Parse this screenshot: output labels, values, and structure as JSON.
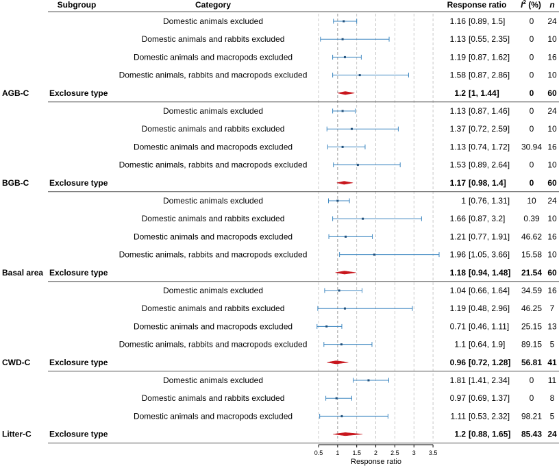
{
  "chart_data": {
    "type": "forest",
    "headers": {
      "subgroup": "Subgroup",
      "category": "Category",
      "response_ratio": "Response ratio",
      "i2_prefix": "I",
      "i2_sup": "2",
      "i2_suffix": " (%)",
      "n": "n"
    },
    "xlabel": "Response ratio",
    "xticks": [
      "0.5",
      "1",
      "1.5",
      "2",
      "2.5",
      "3",
      "3.5"
    ],
    "xlim": [
      0.5,
      3.7
    ],
    "reference_line": 1,
    "accent_colors": {
      "ci_line": "#3b86c0",
      "summary": "#c8161d",
      "grid": "#bbbbbb",
      "divider": "#555555"
    },
    "groups": [
      {
        "subgroup": "AGB-C",
        "rows": [
          {
            "category": "Domestic animals excluded",
            "est": 1.16,
            "lo": 0.89,
            "hi": 1.5,
            "rr_text": "1.16",
            "ci_text": "[0.89, 1.5]",
            "i2": "0",
            "n": "24"
          },
          {
            "category": "Domestic animals and rabbits excluded",
            "est": 1.13,
            "lo": 0.55,
            "hi": 2.35,
            "rr_text": "1.13",
            "ci_text": "[0.55, 2.35]",
            "i2": "0",
            "n": "10"
          },
          {
            "category": "Domestic animals and macropods excluded",
            "est": 1.19,
            "lo": 0.87,
            "hi": 1.62,
            "rr_text": "1.19",
            "ci_text": "[0.87, 1.62]",
            "i2": "0",
            "n": "16"
          },
          {
            "category": "Domestic animals, rabbits and macropods excluded",
            "est": 1.58,
            "lo": 0.87,
            "hi": 2.86,
            "rr_text": "1.58",
            "ci_text": "[0.87, 2.86]",
            "i2": "0",
            "n": "10"
          }
        ],
        "summary": {
          "label": "Exclosure type",
          "est": 1.2,
          "lo": 1,
          "hi": 1.44,
          "rr_text": "1.2",
          "ci_text": "[1, 1.44]",
          "i2": "0",
          "n": "60"
        }
      },
      {
        "subgroup": "BGB-C",
        "rows": [
          {
            "category": "Domestic animals excluded",
            "est": 1.13,
            "lo": 0.87,
            "hi": 1.46,
            "rr_text": "1.13",
            "ci_text": "[0.87, 1.46]",
            "i2": "0",
            "n": "24"
          },
          {
            "category": "Domestic animals and rabbits excluded",
            "est": 1.37,
            "lo": 0.72,
            "hi": 2.59,
            "rr_text": "1.37",
            "ci_text": "[0.72, 2.59]",
            "i2": "0",
            "n": "10"
          },
          {
            "category": "Domestic animals and macropods excluded",
            "est": 1.13,
            "lo": 0.74,
            "hi": 1.72,
            "rr_text": "1.13",
            "ci_text": "[0.74, 1.72]",
            "i2": "30.94",
            "n": "16"
          },
          {
            "category": "Domestic animals, rabbits and macropods excluded",
            "est": 1.53,
            "lo": 0.89,
            "hi": 2.64,
            "rr_text": "1.53",
            "ci_text": "[0.89, 2.64]",
            "i2": "0",
            "n": "10"
          }
        ],
        "summary": {
          "label": "Exclosure type",
          "est": 1.17,
          "lo": 0.98,
          "hi": 1.4,
          "rr_text": "1.17",
          "ci_text": "[0.98, 1.4]",
          "i2": "0",
          "n": "60"
        }
      },
      {
        "subgroup": "Basal area",
        "rows": [
          {
            "category": "Domestic animals excluded",
            "est": 1,
            "lo": 0.76,
            "hi": 1.31,
            "rr_text": "1",
            "ci_text": "[0.76, 1.31]",
            "i2": "10",
            "n": "24"
          },
          {
            "category": "Domestic animals and rabbits excluded",
            "est": 1.66,
            "lo": 0.87,
            "hi": 3.2,
            "rr_text": "1.66",
            "ci_text": "[0.87, 3.2]",
            "i2": "0.39",
            "n": "10"
          },
          {
            "category": "Domestic animals and macropods excluded",
            "est": 1.21,
            "lo": 0.77,
            "hi": 1.91,
            "rr_text": "1.21",
            "ci_text": "[0.77, 1.91]",
            "i2": "46.62",
            "n": "16"
          },
          {
            "category": "Domestic animals, rabbits and macropods excluded",
            "est": 1.96,
            "lo": 1.05,
            "hi": 3.66,
            "rr_text": "1.96",
            "ci_text": "[1.05, 3.66]",
            "i2": "15.58",
            "n": "10"
          }
        ],
        "summary": {
          "label": "Exclosure type",
          "est": 1.18,
          "lo": 0.94,
          "hi": 1.48,
          "rr_text": "1.18",
          "ci_text": "[0.94, 1.48]",
          "i2": "21.54",
          "n": "60"
        }
      },
      {
        "subgroup": "CWD-C",
        "rows": [
          {
            "category": "Domestic animals excluded",
            "est": 1.04,
            "lo": 0.66,
            "hi": 1.64,
            "rr_text": "1.04",
            "ci_text": "[0.66, 1.64]",
            "i2": "34.59",
            "n": "16"
          },
          {
            "category": "Domestic animals and rabbits excluded",
            "est": 1.19,
            "lo": 0.48,
            "hi": 2.96,
            "rr_text": "1.19",
            "ci_text": "[0.48, 2.96]",
            "i2": "46.25",
            "n": "7"
          },
          {
            "category": "Domestic animals and macropods excluded",
            "est": 0.71,
            "lo": 0.46,
            "hi": 1.11,
            "rr_text": "0.71",
            "ci_text": "[0.46, 1.11]",
            "i2": "25.15",
            "n": "13"
          },
          {
            "category": "Domestic animals, rabbits and macropods excluded",
            "est": 1.1,
            "lo": 0.64,
            "hi": 1.9,
            "rr_text": "1.1",
            "ci_text": "[0.64, 1.9]",
            "i2": "89.15",
            "n": "5"
          }
        ],
        "summary": {
          "label": "Exclosure type",
          "est": 0.96,
          "lo": 0.72,
          "hi": 1.28,
          "rr_text": "0.96",
          "ci_text": "[0.72, 1.28]",
          "i2": "56.81",
          "n": "41"
        }
      },
      {
        "subgroup": "Litter-C",
        "rows": [
          {
            "category": "Domestic animals excluded",
            "est": 1.81,
            "lo": 1.41,
            "hi": 2.34,
            "rr_text": "1.81",
            "ci_text": "[1.41, 2.34]",
            "i2": "0",
            "n": "11"
          },
          {
            "category": "Domestic animals and rabbits excluded",
            "est": 0.97,
            "lo": 0.69,
            "hi": 1.37,
            "rr_text": "0.97",
            "ci_text": "[0.69, 1.37]",
            "i2": "0",
            "n": "8"
          },
          {
            "category": "Domestic animals and macropods excluded",
            "est": 1.11,
            "lo": 0.53,
            "hi": 2.32,
            "rr_text": "1.11",
            "ci_text": "[0.53, 2.32]",
            "i2": "98.21",
            "n": "5"
          }
        ],
        "summary": {
          "label": "Exclosure type",
          "est": 1.2,
          "lo": 0.88,
          "hi": 1.65,
          "rr_text": "1.2",
          "ci_text": "[0.88, 1.65]",
          "i2": "85.43",
          "n": "24"
        }
      }
    ]
  }
}
